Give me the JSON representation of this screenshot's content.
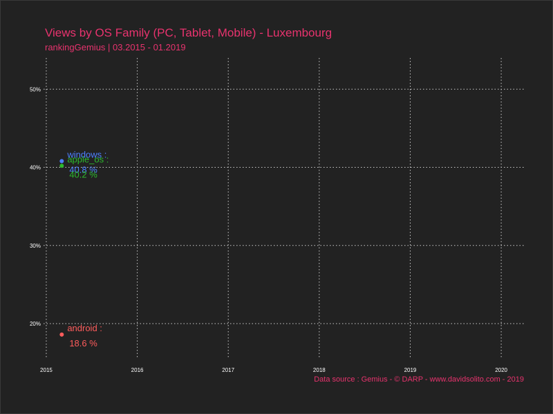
{
  "header": {
    "title": "Views by OS Family (PC, Tablet, Mobile) - Luxembourg",
    "subtitle": "rankingGemius | 03.2015 - 01.2019"
  },
  "footer": {
    "caption": "Data source : Gemius - © DARP - www.davidsolito.com - 2019"
  },
  "colors": {
    "background": "#222222",
    "text": "#e8336e",
    "grid": "#cccccc",
    "tick": "#ffffff"
  },
  "chart_data": {
    "type": "scatter",
    "title": "Views by OS Family (PC, Tablet, Mobile) - Luxembourg",
    "subtitle": "rankingGemius | 03.2015 - 01.2019",
    "xlabel": "",
    "ylabel": "",
    "xlim": [
      2014.97,
      2020.25
    ],
    "ylim": [
      15.5,
      54
    ],
    "x_ticks": [
      2015,
      2016,
      2017,
      2018,
      2019,
      2020
    ],
    "y_ticks": [
      20,
      30,
      40,
      50
    ],
    "y_tick_labels": [
      "20%",
      "30%",
      "40%",
      "50%"
    ],
    "grid": true,
    "series": [
      {
        "name": "windows",
        "color": "#4d80ff",
        "x": 2015.17,
        "y": 40.8,
        "label_name": "windows :",
        "label_value": "40.8 %"
      },
      {
        "name": "apple_os",
        "color": "#2db82d",
        "x": 2015.17,
        "y": 40.2,
        "label_name": "apple_os :",
        "label_value": "40.2 %"
      },
      {
        "name": "android",
        "color": "#ff5c5c",
        "x": 2015.17,
        "y": 18.6,
        "label_name": "android :",
        "label_value": "18.6 %"
      }
    ]
  }
}
